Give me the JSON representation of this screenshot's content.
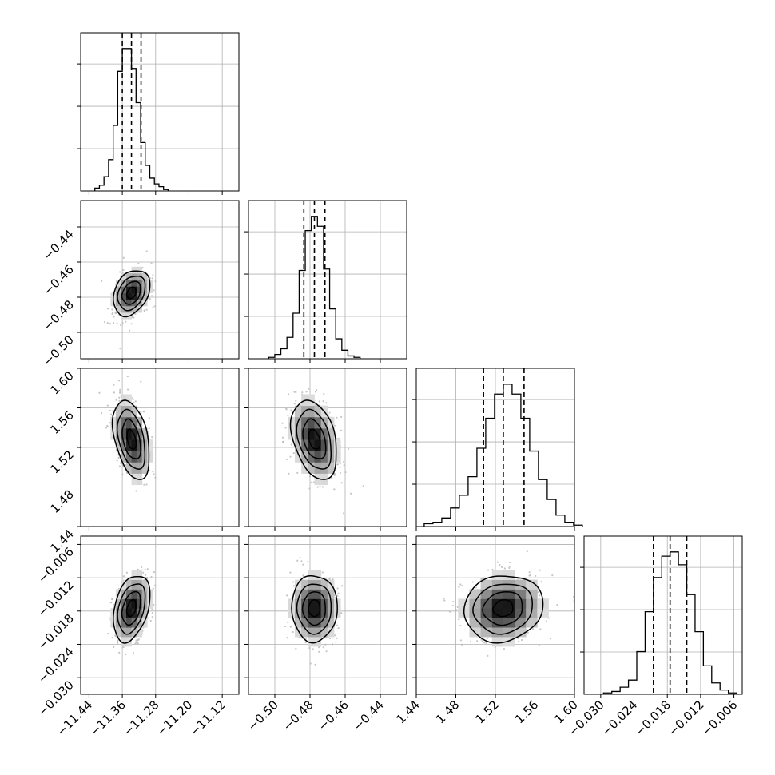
{
  "chart_data": {
    "type": "corner",
    "grid": true,
    "parameters": [
      {
        "range": [
          -11.46,
          -11.08
        ],
        "ticks": [
          -11.44,
          -11.36,
          -11.28,
          -11.2,
          -11.12
        ],
        "tick_labels": [
          "−11.44",
          "−11.36",
          "−11.28",
          "−11.20",
          "−11.12"
        ],
        "quantiles": [
          -11.36,
          -11.338,
          -11.315
        ],
        "mean": -11.338,
        "sd": 0.022,
        "hist": [
          0.02,
          0.04,
          0.1,
          0.22,
          0.46,
          0.84,
          1.0,
          1.0,
          0.86,
          0.62,
          0.34,
          0.18,
          0.09,
          0.05,
          0.03,
          0.01
        ]
      },
      {
        "range": [
          -0.515,
          -0.425
        ],
        "ticks": [
          -0.5,
          -0.48,
          -0.46,
          -0.44
        ],
        "tick_labels": [
          "−0.50",
          "−0.48",
          "−0.46",
          "−0.44"
        ],
        "quantiles": [
          -0.4835,
          -0.4775,
          -0.4715
        ],
        "mean": -0.4775,
        "sd": 0.0065,
        "hist": [
          0.01,
          0.03,
          0.07,
          0.15,
          0.32,
          0.62,
          0.9,
          1.0,
          0.93,
          0.63,
          0.35,
          0.14,
          0.06,
          0.02,
          0.01
        ]
      },
      {
        "range": [
          1.44,
          1.6
        ],
        "ticks": [
          1.44,
          1.48,
          1.52,
          1.56,
          1.6
        ],
        "tick_labels": [
          "1.44",
          "1.48",
          "1.52",
          "1.56",
          "1.60"
        ],
        "quantiles": [
          1.508,
          1.528,
          1.549
        ],
        "mean": 1.528,
        "sd": 0.02,
        "hist": [
          0.02,
          0.03,
          0.06,
          0.13,
          0.22,
          0.35,
          0.55,
          0.76,
          0.93,
          1.0,
          0.93,
          0.76,
          0.53,
          0.33,
          0.19,
          0.08,
          0.03,
          0.01
        ]
      },
      {
        "range": [
          -0.033,
          -0.0045
        ],
        "ticks": [
          -0.03,
          -0.024,
          -0.018,
          -0.012,
          -0.006
        ],
        "tick_labels": [
          "−0.030",
          "−0.024",
          "−0.018",
          "−0.012",
          "−0.006"
        ],
        "quantiles": [
          -0.0205,
          -0.0175,
          -0.0145
        ],
        "mean": -0.0175,
        "sd": 0.003,
        "hist": [
          0.01,
          0.02,
          0.05,
          0.1,
          0.3,
          0.58,
          0.82,
          0.97,
          1.0,
          0.91,
          0.7,
          0.44,
          0.2,
          0.08,
          0.03,
          0.01
        ]
      }
    ],
    "correlations": [
      {
        "row": 1,
        "col": 0,
        "r": 0.3
      },
      {
        "row": 2,
        "col": 0,
        "r": -0.4
      },
      {
        "row": 2,
        "col": 1,
        "r": -0.35
      },
      {
        "row": 3,
        "col": 0,
        "r": 0.35
      },
      {
        "row": 3,
        "col": 1,
        "r": 0.0
      },
      {
        "row": 3,
        "col": 2,
        "r": 0.1
      }
    ],
    "contour_levels_sigma": [
      0.5,
      1.0,
      1.5,
      2.0
    ],
    "colors": {
      "line": "#000000",
      "grid": "#b0b0b0",
      "points": "#b8b8b8"
    }
  }
}
